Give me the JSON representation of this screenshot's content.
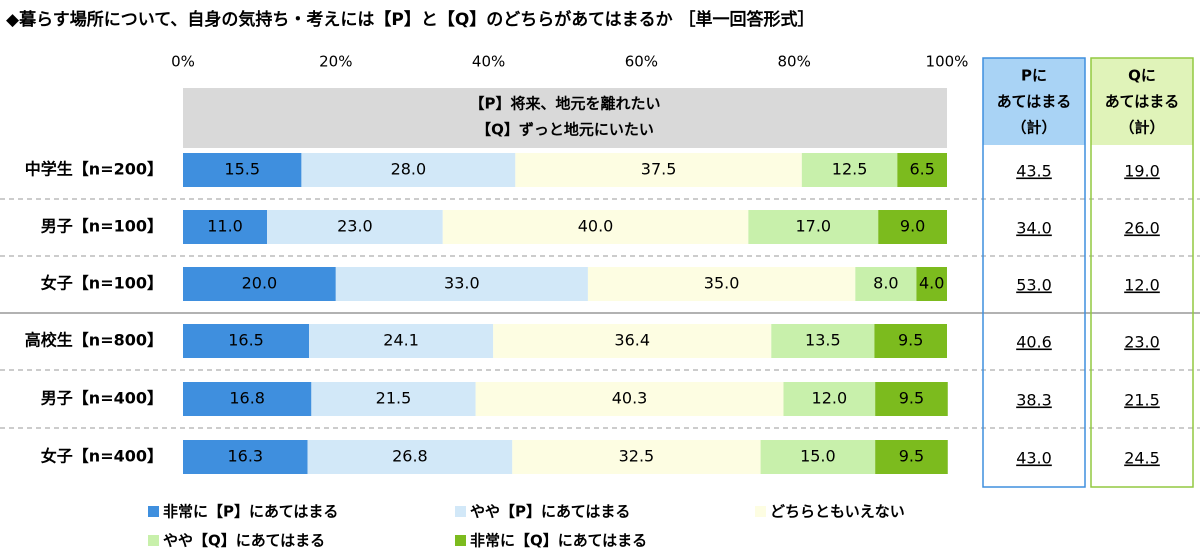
{
  "chart_data": {
    "type": "stacked-bar-horizontal",
    "title": "◆暮らす場所について、自身の気持ち・考えには【P】と【Q】のどちらがあてはまるか ［単一回答形式］",
    "annotations": [
      "【P】将来、地元を離れたい",
      "【Q】ずっと地元にいたい"
    ],
    "categories": [
      "中学生【n=200】",
      "男子【n=100】",
      "女子【n=100】",
      "高校生【n=800】",
      "男子【n=400】",
      "女子【n=400】"
    ],
    "xlim": [
      0,
      100
    ],
    "xticks": [
      {
        "value": 0,
        "label": "0%"
      },
      {
        "value": 20,
        "label": "20%"
      },
      {
        "value": 40,
        "label": "40%"
      },
      {
        "value": 60,
        "label": "60%"
      },
      {
        "value": 80,
        "label": "80%"
      },
      {
        "value": 100,
        "label": "100%"
      }
    ],
    "series": [
      {
        "name": "非常に【P】にあてはまる",
        "color": "#3f8fde",
        "label_color": "#ffffff",
        "values": [
          15.5,
          11.0,
          20.0,
          16.5,
          16.8,
          16.3
        ],
        "value_labels": [
          "15.5",
          "11.0",
          "20.0",
          "16.5",
          "16.8",
          "16.3"
        ]
      },
      {
        "name": "やや【P】にあてはまる",
        "color": "#d2e8f8",
        "label_color": "#000000",
        "values": [
          28.0,
          23.0,
          33.0,
          24.1,
          21.5,
          26.8
        ],
        "value_labels": [
          "28.0",
          "23.0",
          "33.0",
          "24.1",
          "21.5",
          "26.8"
        ]
      },
      {
        "name": "どちらともいえない",
        "color": "#fdfde2",
        "label_color": "#000000",
        "values": [
          37.5,
          40.0,
          35.0,
          36.4,
          40.3,
          32.5
        ],
        "value_labels": [
          "37.5",
          "40.0",
          "35.0",
          "36.4",
          "40.3",
          "32.5"
        ]
      },
      {
        "name": "やや【Q】にあてはまる",
        "color": "#c8f0ab",
        "label_color": "#000000",
        "values": [
          12.5,
          17.0,
          8.0,
          13.5,
          12.0,
          15.0
        ],
        "value_labels": [
          "12.5",
          "17.0",
          "8.0",
          "13.5",
          "12.0",
          "15.0"
        ]
      },
      {
        "name": "非常に【Q】にあてはまる",
        "color": "#7cbb1e",
        "label_color": "#000000",
        "values": [
          6.5,
          9.0,
          4.0,
          9.5,
          9.5,
          9.5
        ],
        "value_labels": [
          "6.5",
          "9.0",
          "4.0",
          "9.5",
          "9.5",
          "9.5"
        ]
      }
    ],
    "totals": [
      {
        "header": [
          "Pに",
          "あてはまる",
          "（計）"
        ],
        "header_color": "#a9d3f5",
        "border_color": "#3f8fde",
        "values": [
          43.5,
          34.0,
          53.0,
          40.6,
          38.3,
          43.0
        ],
        "value_labels": [
          "43.5",
          "34.0",
          "53.0",
          "40.6",
          "38.3",
          "43.0"
        ]
      },
      {
        "header": [
          "Qに",
          "あてはまる",
          "（計）"
        ],
        "header_color": "#e0f3b9",
        "border_color": "#92c940",
        "values": [
          19.0,
          26.0,
          12.0,
          23.0,
          21.5,
          24.5
        ],
        "value_labels": [
          "19.0",
          "26.0",
          "12.0",
          "23.0",
          "21.5",
          "24.5"
        ]
      }
    ]
  }
}
